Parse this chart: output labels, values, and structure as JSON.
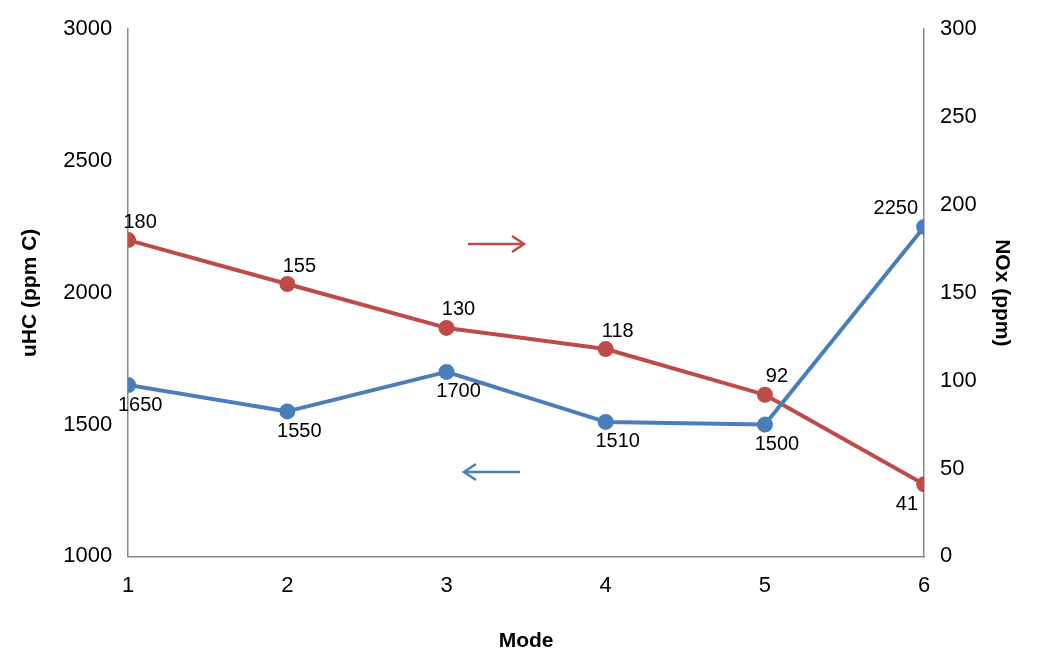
{
  "chart_data": {
    "type": "line",
    "xlabel": "Mode",
    "ylabel": "uHC (ppm C)",
    "y2label": "NOx (ppm)",
    "x": [
      1,
      2,
      3,
      4,
      5,
      6
    ],
    "xlim": [
      1,
      6
    ],
    "xticks": [
      1,
      2,
      3,
      4,
      5,
      6
    ],
    "ylim": [
      1000,
      3000
    ],
    "yticks": [
      1000,
      1500,
      2000,
      2500,
      3000
    ],
    "y2lim": [
      0,
      300
    ],
    "y2ticks": [
      0,
      50,
      100,
      150,
      200,
      250,
      300
    ],
    "series": [
      {
        "color": "#4a7ebb",
        "values": [
          1650,
          1550,
          1700,
          1510,
          1500,
          2250
        ]
      },
      {
        "color": "#be4b48",
        "values": [
          180,
          155,
          130,
          118,
          92,
          41
        ],
        "axis": "y2"
      }
    ],
    "data_labels": true,
    "grid": false,
    "legend": false,
    "marker": "circle",
    "line_style": "solid"
  }
}
